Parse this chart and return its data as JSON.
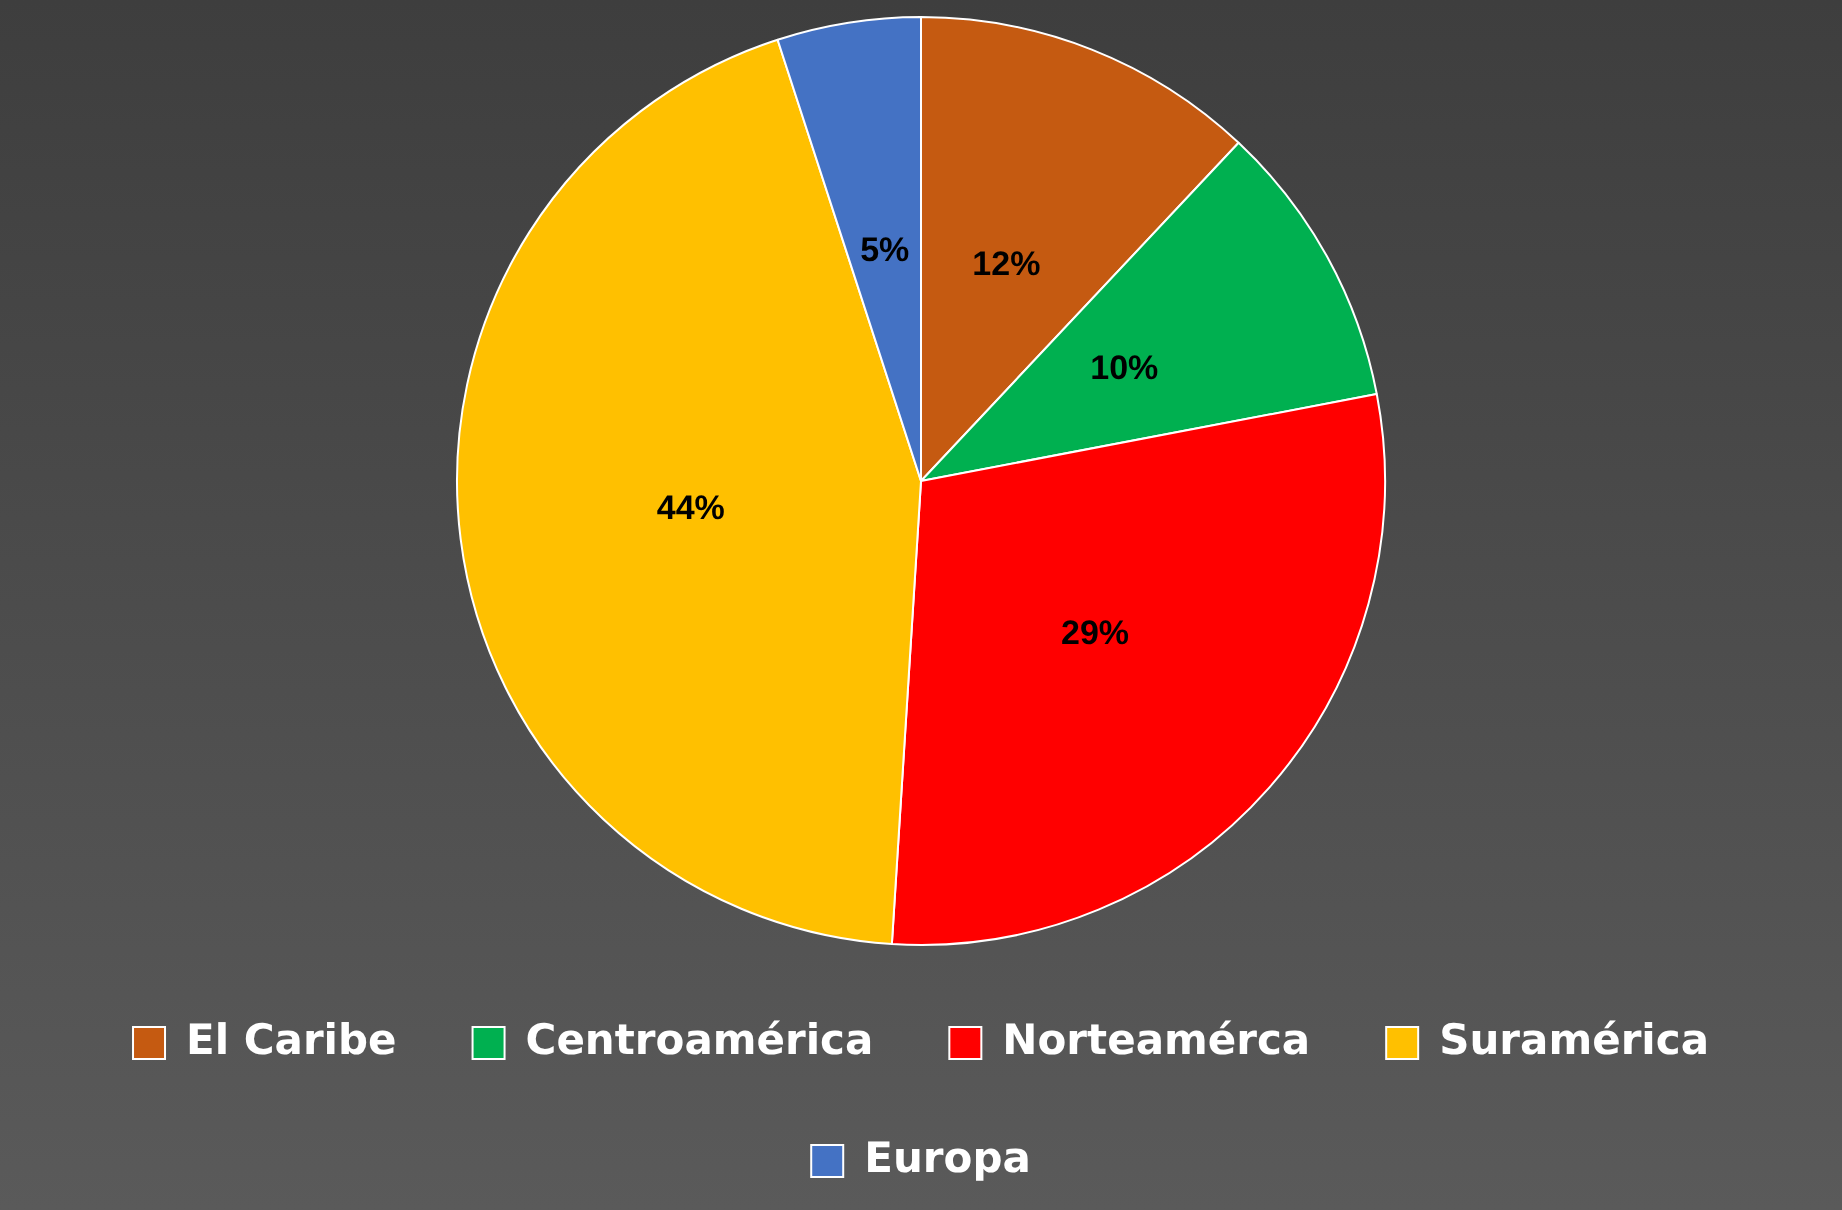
{
  "chart_data": {
    "type": "pie",
    "categories": [
      "El Caribe",
      "Centroamérica",
      "Norteamérca",
      "Suramérica",
      "Europa"
    ],
    "values": [
      12,
      10,
      29,
      44,
      5
    ],
    "colors": [
      "#c55a11",
      "#00b050",
      "#ff0000",
      "#ffc000",
      "#4472c4"
    ],
    "value_labels": [
      "12%",
      "10%",
      "29%",
      "44%",
      "5%"
    ],
    "legend": "bottom"
  }
}
